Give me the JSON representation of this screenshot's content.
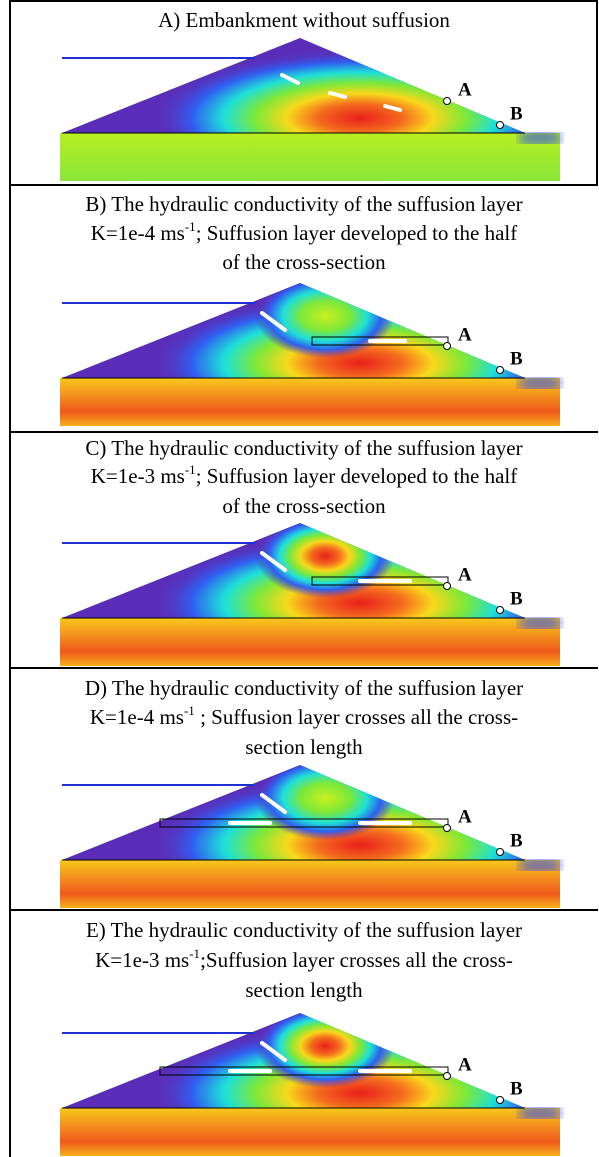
{
  "panels": [
    {
      "title_lines": [
        "A) Embankment without suffusion"
      ],
      "labels": [
        "A",
        "B"
      ]
    },
    {
      "title_lines": [
        "B) The hydraulic conductivity of the suffusion layer",
        {
          "before": "K=1e-4 ms",
          "superscript": "-1",
          "after": ";  Suffusion layer developed to the half"
        },
        "of the cross-section"
      ],
      "labels": [
        "A",
        "B"
      ]
    },
    {
      "title_lines": [
        "C) The hydraulic conductivity of the suffusion layer",
        {
          "before": "K=1e-3 ms",
          "superscript": "-1",
          "after": ";  Suffusion layer developed to the half"
        },
        "of the cross-section"
      ],
      "labels": [
        "A",
        "B"
      ]
    },
    {
      "title_lines": [
        "D) The hydraulic conductivity of the suffusion layer",
        {
          "before": "K=1e-4 ms",
          "superscript": "-1",
          "after": " ;  Suffusion layer crosses all the cross-"
        },
        "section length"
      ],
      "labels": [
        "A",
        "B"
      ]
    },
    {
      "title_lines": [
        "E) The hydraulic conductivity of the suffusion layer",
        {
          "before": "K=1e-3 ms",
          "superscript": "-1",
          "after": ";Suffusion layer crosses all the cross-"
        },
        "section length"
      ],
      "labels": [
        "A",
        "B"
      ]
    }
  ]
}
